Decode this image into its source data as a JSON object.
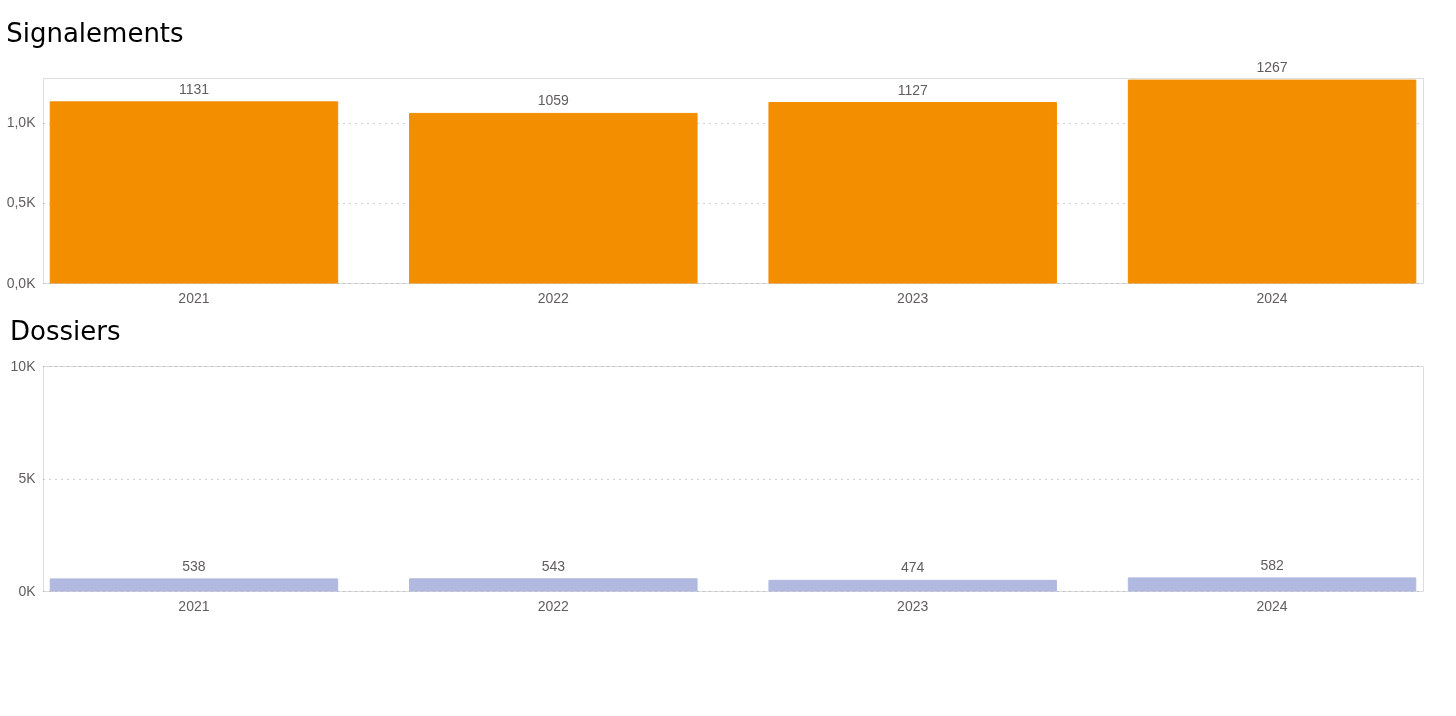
{
  "chart_data": [
    {
      "type": "bar",
      "title": "Signalements",
      "categories": [
        "2021",
        "2022",
        "2023",
        "2024"
      ],
      "values": [
        1131,
        1059,
        1127,
        1267
      ],
      "color": "#f28e00",
      "ylim": [
        0,
        1280
      ],
      "yticks": [
        {
          "value": 0,
          "label": "0,0K"
        },
        {
          "value": 500,
          "label": "0,5K"
        },
        {
          "value": 1000,
          "label": "1,0K"
        }
      ],
      "grid": "y",
      "data_labels": true
    },
    {
      "type": "bar",
      "title": "Dossiers",
      "categories": [
        "2021",
        "2022",
        "2023",
        "2024"
      ],
      "values": [
        538,
        543,
        474,
        582
      ],
      "color": "#b1b9e0",
      "ylim": [
        0,
        10000
      ],
      "yticks": [
        {
          "value": 0,
          "label": "0K"
        },
        {
          "value": 5000,
          "label": "5K"
        },
        {
          "value": 10000,
          "label": "10K"
        }
      ],
      "grid": "y",
      "data_labels": true
    }
  ]
}
